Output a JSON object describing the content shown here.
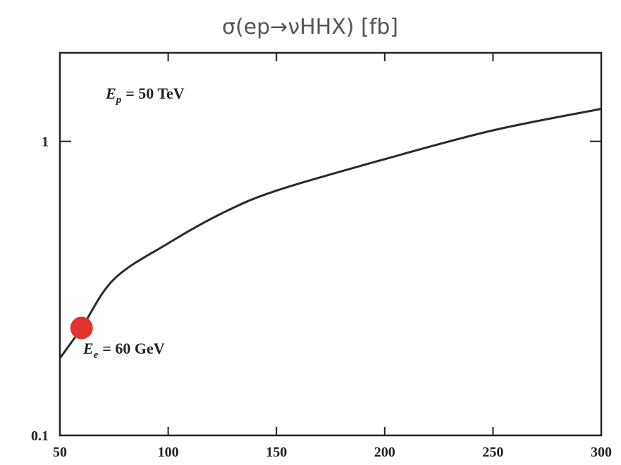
{
  "chart_data": {
    "type": "line",
    "title": "σ(ep→νHHX) [fb]",
    "series": [
      {
        "color": "#2a2a2a",
        "x": [
          50,
          60,
          75,
          100,
          125,
          150,
          200,
          250,
          300
        ],
        "values": [
          0.183,
          0.232,
          0.34,
          0.45,
          0.57,
          0.68,
          0.87,
          1.09,
          1.29
        ]
      },
      {
        "color": "#e0342a",
        "marker": "circle",
        "x": [
          60
        ],
        "values": [
          0.232
        ]
      }
    ],
    "annotations": [
      {
        "symbol": "E",
        "subscript": "p",
        "text": "= 50 TeV"
      },
      {
        "symbol": "E",
        "subscript": "e",
        "text": "= 60 GeV"
      }
    ],
    "xlim": [
      50,
      300
    ],
    "xticks": [
      50,
      100,
      150,
      200,
      250,
      300
    ],
    "ylim": [
      0.1,
      2
    ],
    "yticks": [
      0.1,
      1
    ],
    "log_y": true,
    "grid": false
  }
}
